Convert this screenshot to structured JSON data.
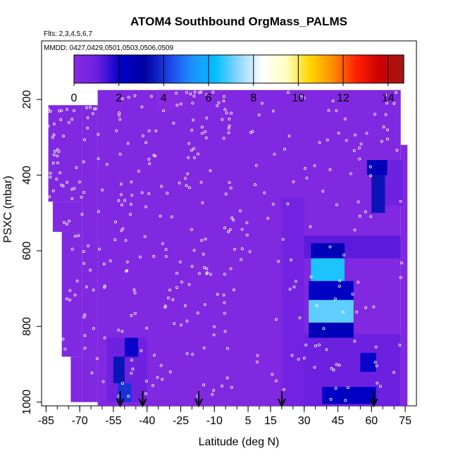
{
  "chart_data": {
    "type": "heatmap",
    "title": "ATOM4 Southbound OrgMass_PALMS",
    "subtitle_flights": "Flts: 2,3,4,5,6,7",
    "subtitle_dates": "MMDD: 0427,0429,0501,0503,0506,0509",
    "xlabel": "Latitude (deg N)",
    "ylabel": "PSXC (mbar)",
    "x_ticks": [
      "-85",
      "-70",
      "-55",
      "-40",
      "-25",
      "-10",
      "5",
      "15",
      "30",
      "45",
      "60",
      "75"
    ],
    "y_ticks": [
      "200",
      "400",
      "600",
      "800",
      "1000"
    ],
    "xlim": [
      -87,
      80
    ],
    "ylim": [
      1010,
      45
    ],
    "y_inverted": true,
    "colorbar": {
      "ticks": [
        "0",
        "2",
        "4",
        "6",
        "8",
        "10",
        "12",
        "14"
      ],
      "range": [
        0,
        14.7
      ],
      "colors": [
        "#8a2be2",
        "#6a1fe0",
        "#0000c8",
        "#0000a0",
        "#1e40e6",
        "#1e90ff",
        "#00bfff",
        "#8fd5ff",
        "#ffffff",
        "#ffffc0",
        "#ffd700",
        "#ff8c00",
        "#ff2000",
        "#cc0000",
        "#a01818"
      ]
    },
    "background_value": 0.3,
    "coverage": [
      {
        "lat_min": -84,
        "lat_max": -69,
        "p_min": 215,
        "p_max": 470
      },
      {
        "lat_min": -82,
        "lat_max": -69,
        "p_min": 470,
        "p_max": 550
      },
      {
        "lat_min": -78,
        "lat_max": -69,
        "p_min": 550,
        "p_max": 880
      },
      {
        "lat_min": -74,
        "lat_max": -69,
        "p_min": 880,
        "p_max": 1000
      },
      {
        "lat_min": -69,
        "lat_max": -62,
        "p_min": 215,
        "p_max": 1000
      },
      {
        "lat_min": -62,
        "lat_max": 73,
        "p_min": 175,
        "p_max": 1010
      },
      {
        "lat_min": 73,
        "lat_max": 76,
        "p_min": 320,
        "p_max": 1010
      }
    ],
    "patches": [
      {
        "lat_min": -36,
        "lat_max": -22,
        "p_min": 175,
        "p_max": 230,
        "value": 0.1
      },
      {
        "lat_min": 28,
        "lat_max": 73,
        "p_min": 560,
        "p_max": 620,
        "value": 1.2
      },
      {
        "lat_min": 28,
        "lat_max": 73,
        "p_min": 820,
        "p_max": 1010,
        "value": 1.0
      },
      {
        "lat_min": 20,
        "lat_max": 30,
        "p_min": 460,
        "p_max": 1010,
        "value": 0.8
      },
      {
        "lat_min": 60,
        "lat_max": 74,
        "p_min": 360,
        "p_max": 480,
        "value": 0.9
      },
      {
        "lat_min": -58,
        "lat_max": -40,
        "p_min": 830,
        "p_max": 1000,
        "value": 0.9
      },
      {
        "lat_min": 33,
        "lat_max": 48,
        "p_min": 580,
        "p_max": 620,
        "value": 2.5
      },
      {
        "lat_min": 33,
        "lat_max": 48,
        "p_min": 620,
        "p_max": 680,
        "value": 6.5
      },
      {
        "lat_min": 32,
        "lat_max": 52,
        "p_min": 680,
        "p_max": 730,
        "value": 2.2
      },
      {
        "lat_min": 32,
        "lat_max": 52,
        "p_min": 730,
        "p_max": 790,
        "value": 7.0
      },
      {
        "lat_min": 32,
        "lat_max": 52,
        "p_min": 790,
        "p_max": 830,
        "value": 2.5
      },
      {
        "lat_min": 60,
        "lat_max": 66,
        "p_min": 400,
        "p_max": 500,
        "value": 3.5
      },
      {
        "lat_min": 58,
        "lat_max": 67,
        "p_min": 360,
        "p_max": 400,
        "value": 2.5
      },
      {
        "lat_min": 55,
        "lat_max": 62,
        "p_min": 870,
        "p_max": 920,
        "value": 2.0
      },
      {
        "lat_min": 38,
        "lat_max": 62,
        "p_min": 960,
        "p_max": 1005,
        "value": 2.2
      },
      {
        "lat_min": -55,
        "lat_max": -50,
        "p_min": 880,
        "p_max": 950,
        "value": 3.5
      },
      {
        "lat_min": -53,
        "lat_max": -47,
        "p_min": 950,
        "p_max": 1000,
        "value": 4.0
      },
      {
        "lat_min": -50,
        "lat_max": -44,
        "p_min": 830,
        "p_max": 880,
        "value": 2.0
      }
    ],
    "arrows_lat": [
      -52,
      -42,
      -17,
      20,
      61
    ]
  }
}
